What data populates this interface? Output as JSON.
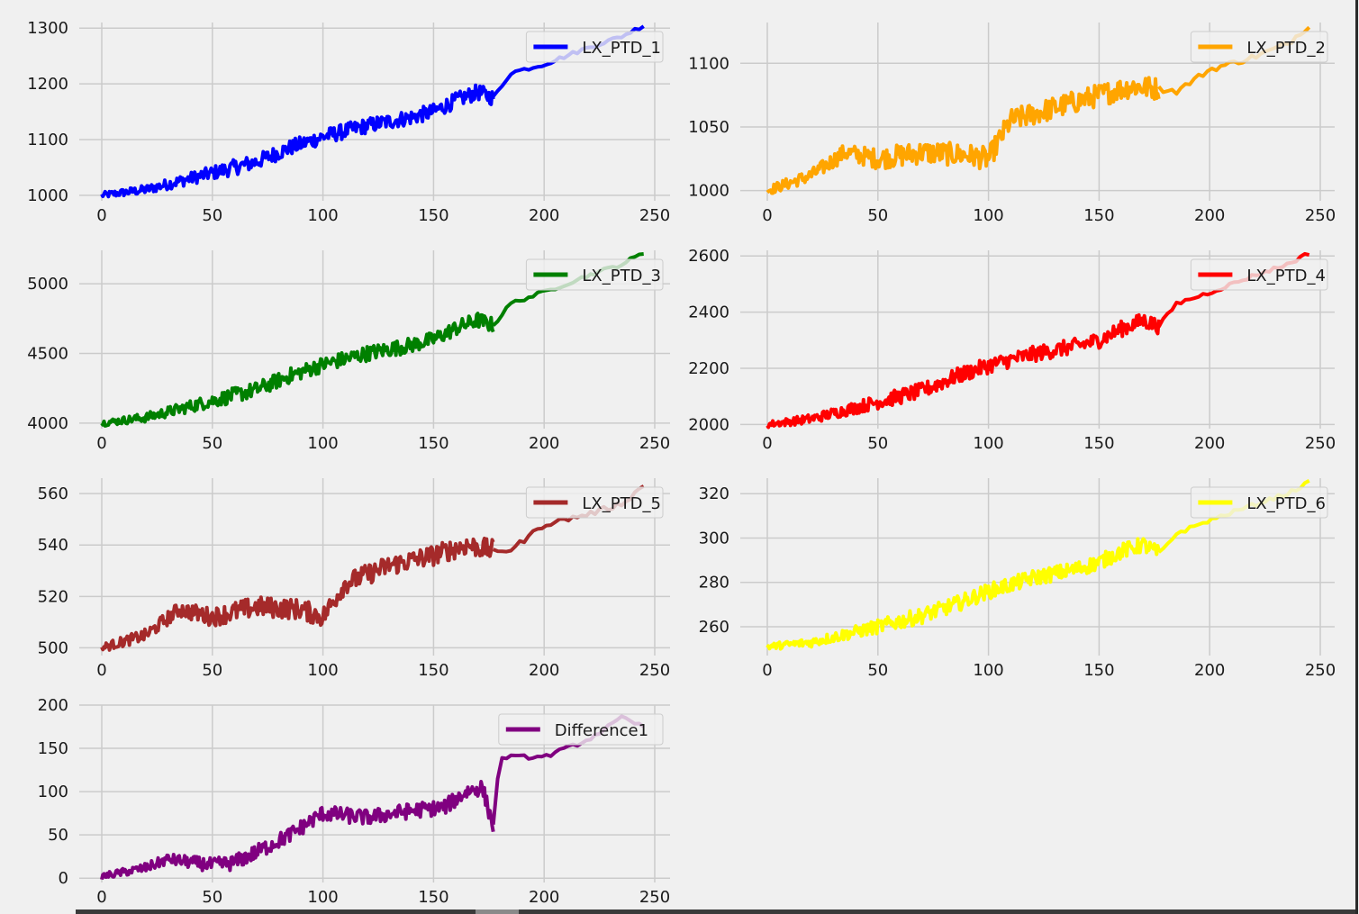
{
  "chart_data": [
    {
      "type": "line",
      "series": [
        {
          "name": "LX_PTD_1",
          "color": "#0000ff"
        }
      ],
      "xlim": [
        0,
        250
      ],
      "ylim": [
        990,
        1310
      ],
      "xticks": [
        0,
        50,
        100,
        150,
        200,
        250
      ],
      "yticks": [
        1000,
        1100,
        1200,
        1300
      ],
      "x_step": 1,
      "dense_until": 177,
      "noise": 14,
      "trend": [
        [
          0,
          1000
        ],
        [
          20,
          1010
        ],
        [
          50,
          1040
        ],
        [
          70,
          1060
        ],
        [
          85,
          1085
        ],
        [
          100,
          1105
        ],
        [
          120,
          1125
        ],
        [
          140,
          1140
        ],
        [
          150,
          1150
        ],
        [
          160,
          1170
        ],
        [
          170,
          1185
        ],
        [
          177,
          1175
        ],
        [
          185,
          1220
        ],
        [
          200,
          1235
        ],
        [
          220,
          1265
        ],
        [
          235,
          1285
        ],
        [
          245,
          1305
        ]
      ],
      "grid": true,
      "legend": "upper right"
    },
    {
      "type": "line",
      "series": [
        {
          "name": "LX_PTD_2",
          "color": "#ffa500"
        }
      ],
      "xlim": [
        0,
        250
      ],
      "ylim": [
        992,
        1132
      ],
      "xticks": [
        0,
        50,
        100,
        150,
        200,
        250
      ],
      "yticks": [
        1000,
        1050,
        1100
      ],
      "x_step": 1,
      "dense_until": 177,
      "noise": 9,
      "trend": [
        [
          0,
          1000
        ],
        [
          20,
          1012
        ],
        [
          35,
          1030
        ],
        [
          50,
          1025
        ],
        [
          70,
          1030
        ],
        [
          90,
          1028
        ],
        [
          100,
          1025
        ],
        [
          110,
          1055
        ],
        [
          130,
          1065
        ],
        [
          150,
          1075
        ],
        [
          165,
          1082
        ],
        [
          177,
          1080
        ],
        [
          185,
          1078
        ],
        [
          200,
          1095
        ],
        [
          220,
          1105
        ],
        [
          235,
          1115
        ],
        [
          245,
          1130
        ]
      ],
      "grid": true,
      "legend": "upper right"
    },
    {
      "type": "line",
      "series": [
        {
          "name": "LX_PTD_3",
          "color": "#008000"
        }
      ],
      "xlim": [
        0,
        250
      ],
      "ylim": [
        3960,
        5240
      ],
      "xticks": [
        0,
        50,
        100,
        150,
        200,
        250
      ],
      "yticks": [
        4000,
        4500,
        5000
      ],
      "x_step": 1,
      "dense_until": 177,
      "noise": 55,
      "trend": [
        [
          0,
          4000
        ],
        [
          20,
          4040
        ],
        [
          50,
          4160
        ],
        [
          70,
          4240
        ],
        [
          85,
          4340
        ],
        [
          100,
          4420
        ],
        [
          120,
          4500
        ],
        [
          140,
          4560
        ],
        [
          150,
          4600
        ],
        [
          160,
          4680
        ],
        [
          170,
          4740
        ],
        [
          177,
          4700
        ],
        [
          185,
          4860
        ],
        [
          200,
          4940
        ],
        [
          220,
          5060
        ],
        [
          235,
          5140
        ],
        [
          245,
          5220
        ]
      ],
      "grid": true,
      "legend": "upper right"
    },
    {
      "type": "line",
      "series": [
        {
          "name": "LX_PTD_4",
          "color": "#ff0000"
        }
      ],
      "xlim": [
        0,
        250
      ],
      "ylim": [
        1985,
        2620
      ],
      "xticks": [
        0,
        50,
        100,
        150,
        200,
        250
      ],
      "yticks": [
        2000,
        2200,
        2400,
        2600
      ],
      "x_step": 1,
      "dense_until": 177,
      "noise": 28,
      "trend": [
        [
          0,
          2000
        ],
        [
          20,
          2020
        ],
        [
          50,
          2080
        ],
        [
          70,
          2120
        ],
        [
          85,
          2170
        ],
        [
          100,
          2210
        ],
        [
          120,
          2250
        ],
        [
          140,
          2280
        ],
        [
          150,
          2300
        ],
        [
          160,
          2340
        ],
        [
          170,
          2370
        ],
        [
          177,
          2350
        ],
        [
          185,
          2430
        ],
        [
          200,
          2470
        ],
        [
          220,
          2530
        ],
        [
          235,
          2570
        ],
        [
          245,
          2610
        ]
      ],
      "grid": true,
      "legend": "upper right"
    },
    {
      "type": "line",
      "series": [
        {
          "name": "LX_PTD_5",
          "color": "#a52a2a"
        }
      ],
      "xlim": [
        0,
        250
      ],
      "ylim": [
        497,
        566
      ],
      "xticks": [
        0,
        50,
        100,
        150,
        200,
        250
      ],
      "yticks": [
        500,
        520,
        540,
        560
      ],
      "x_step": 1,
      "dense_until": 177,
      "noise": 4,
      "trend": [
        [
          0,
          500
        ],
        [
          20,
          505
        ],
        [
          35,
          515
        ],
        [
          50,
          512
        ],
        [
          70,
          516
        ],
        [
          90,
          515
        ],
        [
          100,
          512
        ],
        [
          110,
          525
        ],
        [
          130,
          532
        ],
        [
          150,
          536
        ],
        [
          165,
          540
        ],
        [
          177,
          538
        ],
        [
          185,
          538
        ],
        [
          200,
          548
        ],
        [
          220,
          552
        ],
        [
          235,
          556
        ],
        [
          245,
          563
        ]
      ],
      "grid": true,
      "legend": "upper right"
    },
    {
      "type": "line",
      "series": [
        {
          "name": "LX_PTD_6",
          "color": "#ffff00"
        }
      ],
      "xlim": [
        0,
        250
      ],
      "ylim": [
        247,
        327
      ],
      "xticks": [
        0,
        50,
        100,
        150,
        200,
        250
      ],
      "yticks": [
        260,
        280,
        300,
        320
      ],
      "x_step": 1,
      "dense_until": 177,
      "noise": 3.5,
      "trend": [
        [
          0,
          251
        ],
        [
          20,
          253
        ],
        [
          50,
          260
        ],
        [
          70,
          265
        ],
        [
          85,
          270
        ],
        [
          100,
          276
        ],
        [
          120,
          282
        ],
        [
          140,
          286
        ],
        [
          150,
          289
        ],
        [
          160,
          294
        ],
        [
          170,
          297
        ],
        [
          177,
          293
        ],
        [
          185,
          302
        ],
        [
          200,
          308
        ],
        [
          220,
          315
        ],
        [
          235,
          320
        ],
        [
          245,
          325
        ]
      ],
      "grid": true,
      "legend": "upper right"
    },
    {
      "type": "line",
      "series": [
        {
          "name": "Difference1",
          "color": "#800080"
        }
      ],
      "xlim": [
        0,
        250
      ],
      "ylim": [
        -5,
        200
      ],
      "xticks": [
        0,
        50,
        100,
        150,
        200,
        250
      ],
      "yticks": [
        0,
        50,
        100,
        150,
        200
      ],
      "x_step": 1,
      "dense_until": 177,
      "noise": 9,
      "trend": [
        [
          0,
          2
        ],
        [
          20,
          12
        ],
        [
          30,
          22
        ],
        [
          50,
          15
        ],
        [
          60,
          18
        ],
        [
          70,
          30
        ],
        [
          85,
          50
        ],
        [
          100,
          75
        ],
        [
          120,
          70
        ],
        [
          140,
          78
        ],
        [
          155,
          82
        ],
        [
          165,
          100
        ],
        [
          172,
          105
        ],
        [
          177,
          60
        ],
        [
          180,
          140
        ],
        [
          200,
          140
        ],
        [
          220,
          160
        ],
        [
          235,
          185
        ],
        [
          245,
          175
        ]
      ],
      "grid": true,
      "legend": "upper right"
    }
  ]
}
